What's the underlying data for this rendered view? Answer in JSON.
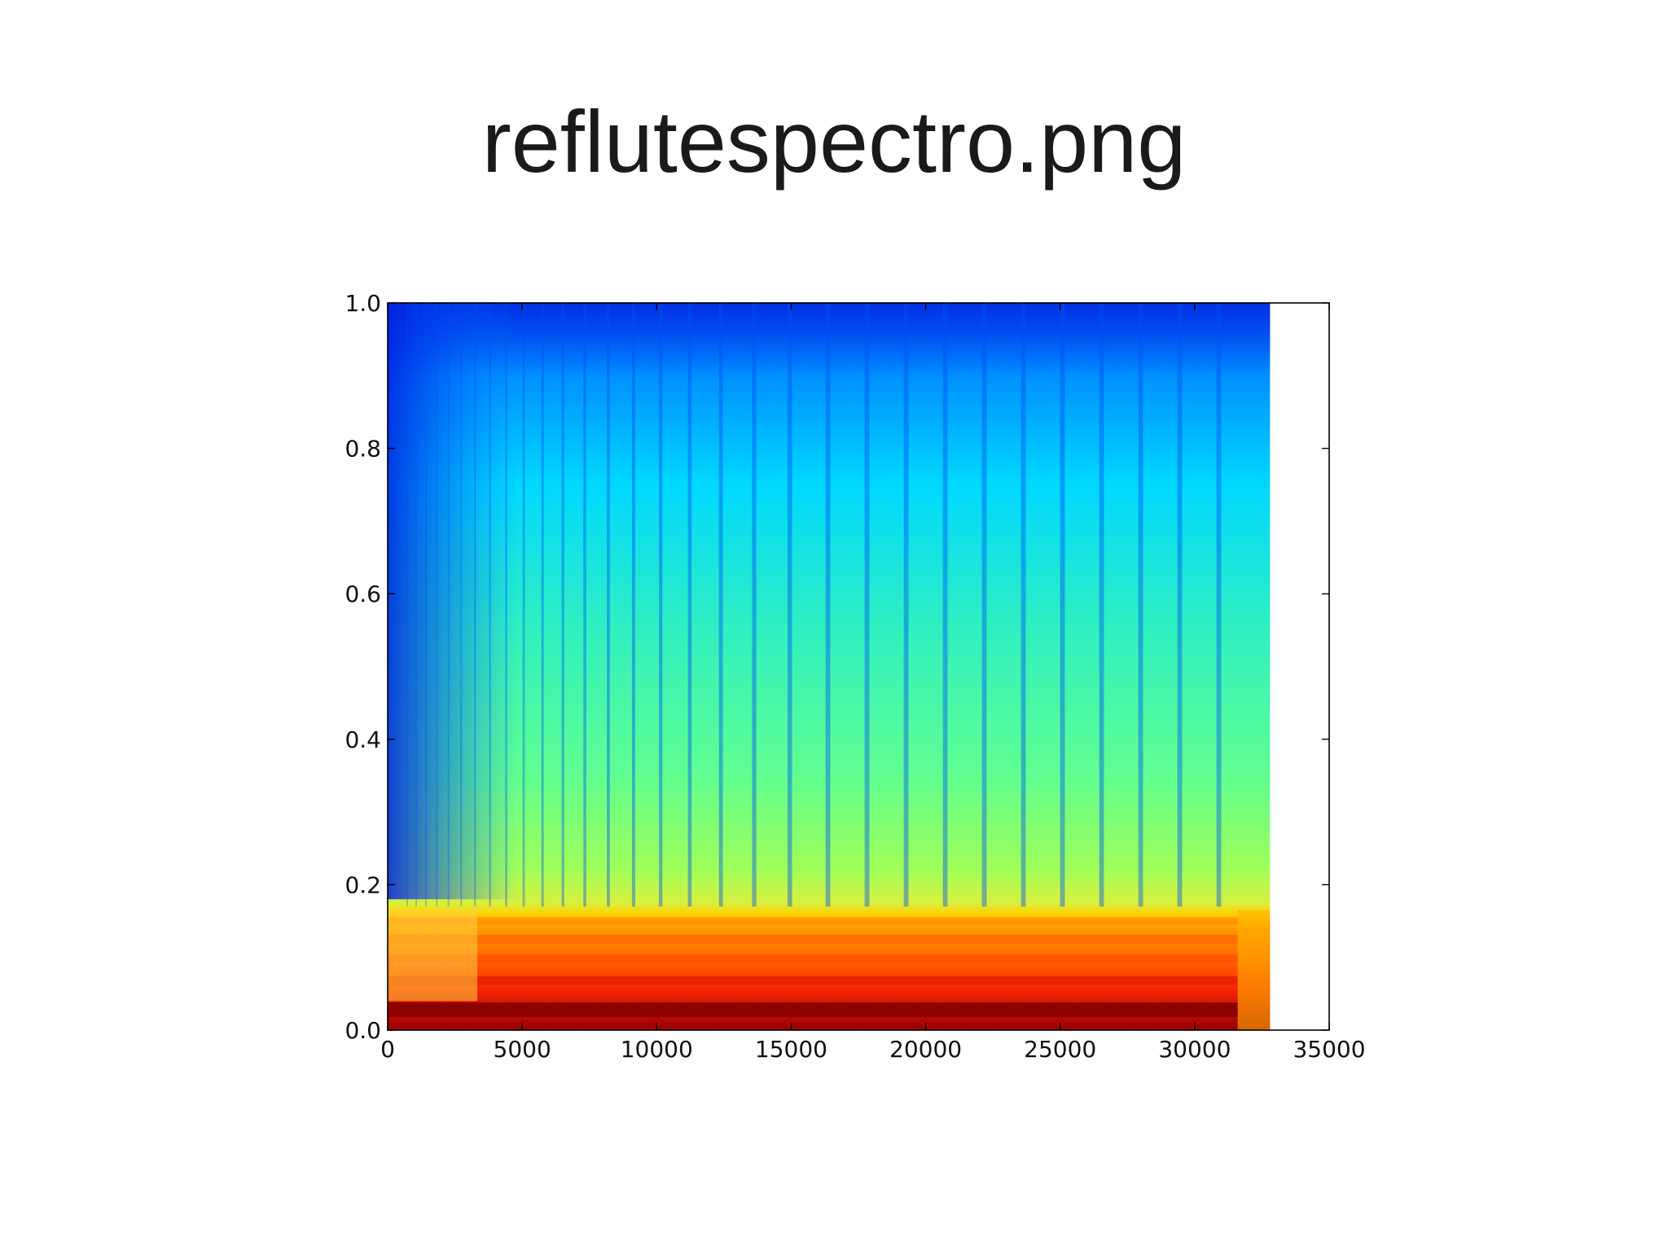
{
  "slide": {
    "title": "reflutespectro.png"
  },
  "chart_data": {
    "type": "heatmap",
    "title": "reflutespectro.png",
    "xlabel": "",
    "ylabel": "",
    "xlim": [
      0,
      35000
    ],
    "ylim": [
      0.0,
      1.0
    ],
    "data_x_extent": [
      0,
      32800
    ],
    "x_ticks": [
      0,
      5000,
      10000,
      15000,
      20000,
      25000,
      30000,
      35000
    ],
    "x_tick_labels": [
      "0",
      "5000",
      "10000",
      "15000",
      "20000",
      "25000",
      "30000",
      "35000"
    ],
    "y_ticks": [
      0.0,
      0.2,
      0.4,
      0.6,
      0.8,
      1.0
    ],
    "y_tick_labels": [
      "0.0",
      "0.2",
      "0.4",
      "0.6",
      "0.8",
      "1.0"
    ],
    "colormap": "jet",
    "grid": false,
    "legend": "none",
    "colors": {
      "dark_blue": "#0010d8",
      "blue": "#0060ff",
      "cyan": "#00d8ff",
      "aqua_green": "#30f0c0",
      "green": "#60ff90",
      "yellow_green": "#a0ff58",
      "yellow": "#ffd000",
      "orange": "#ff8a00",
      "red": "#ff2a00",
      "dark_red": "#9a0000"
    }
  }
}
